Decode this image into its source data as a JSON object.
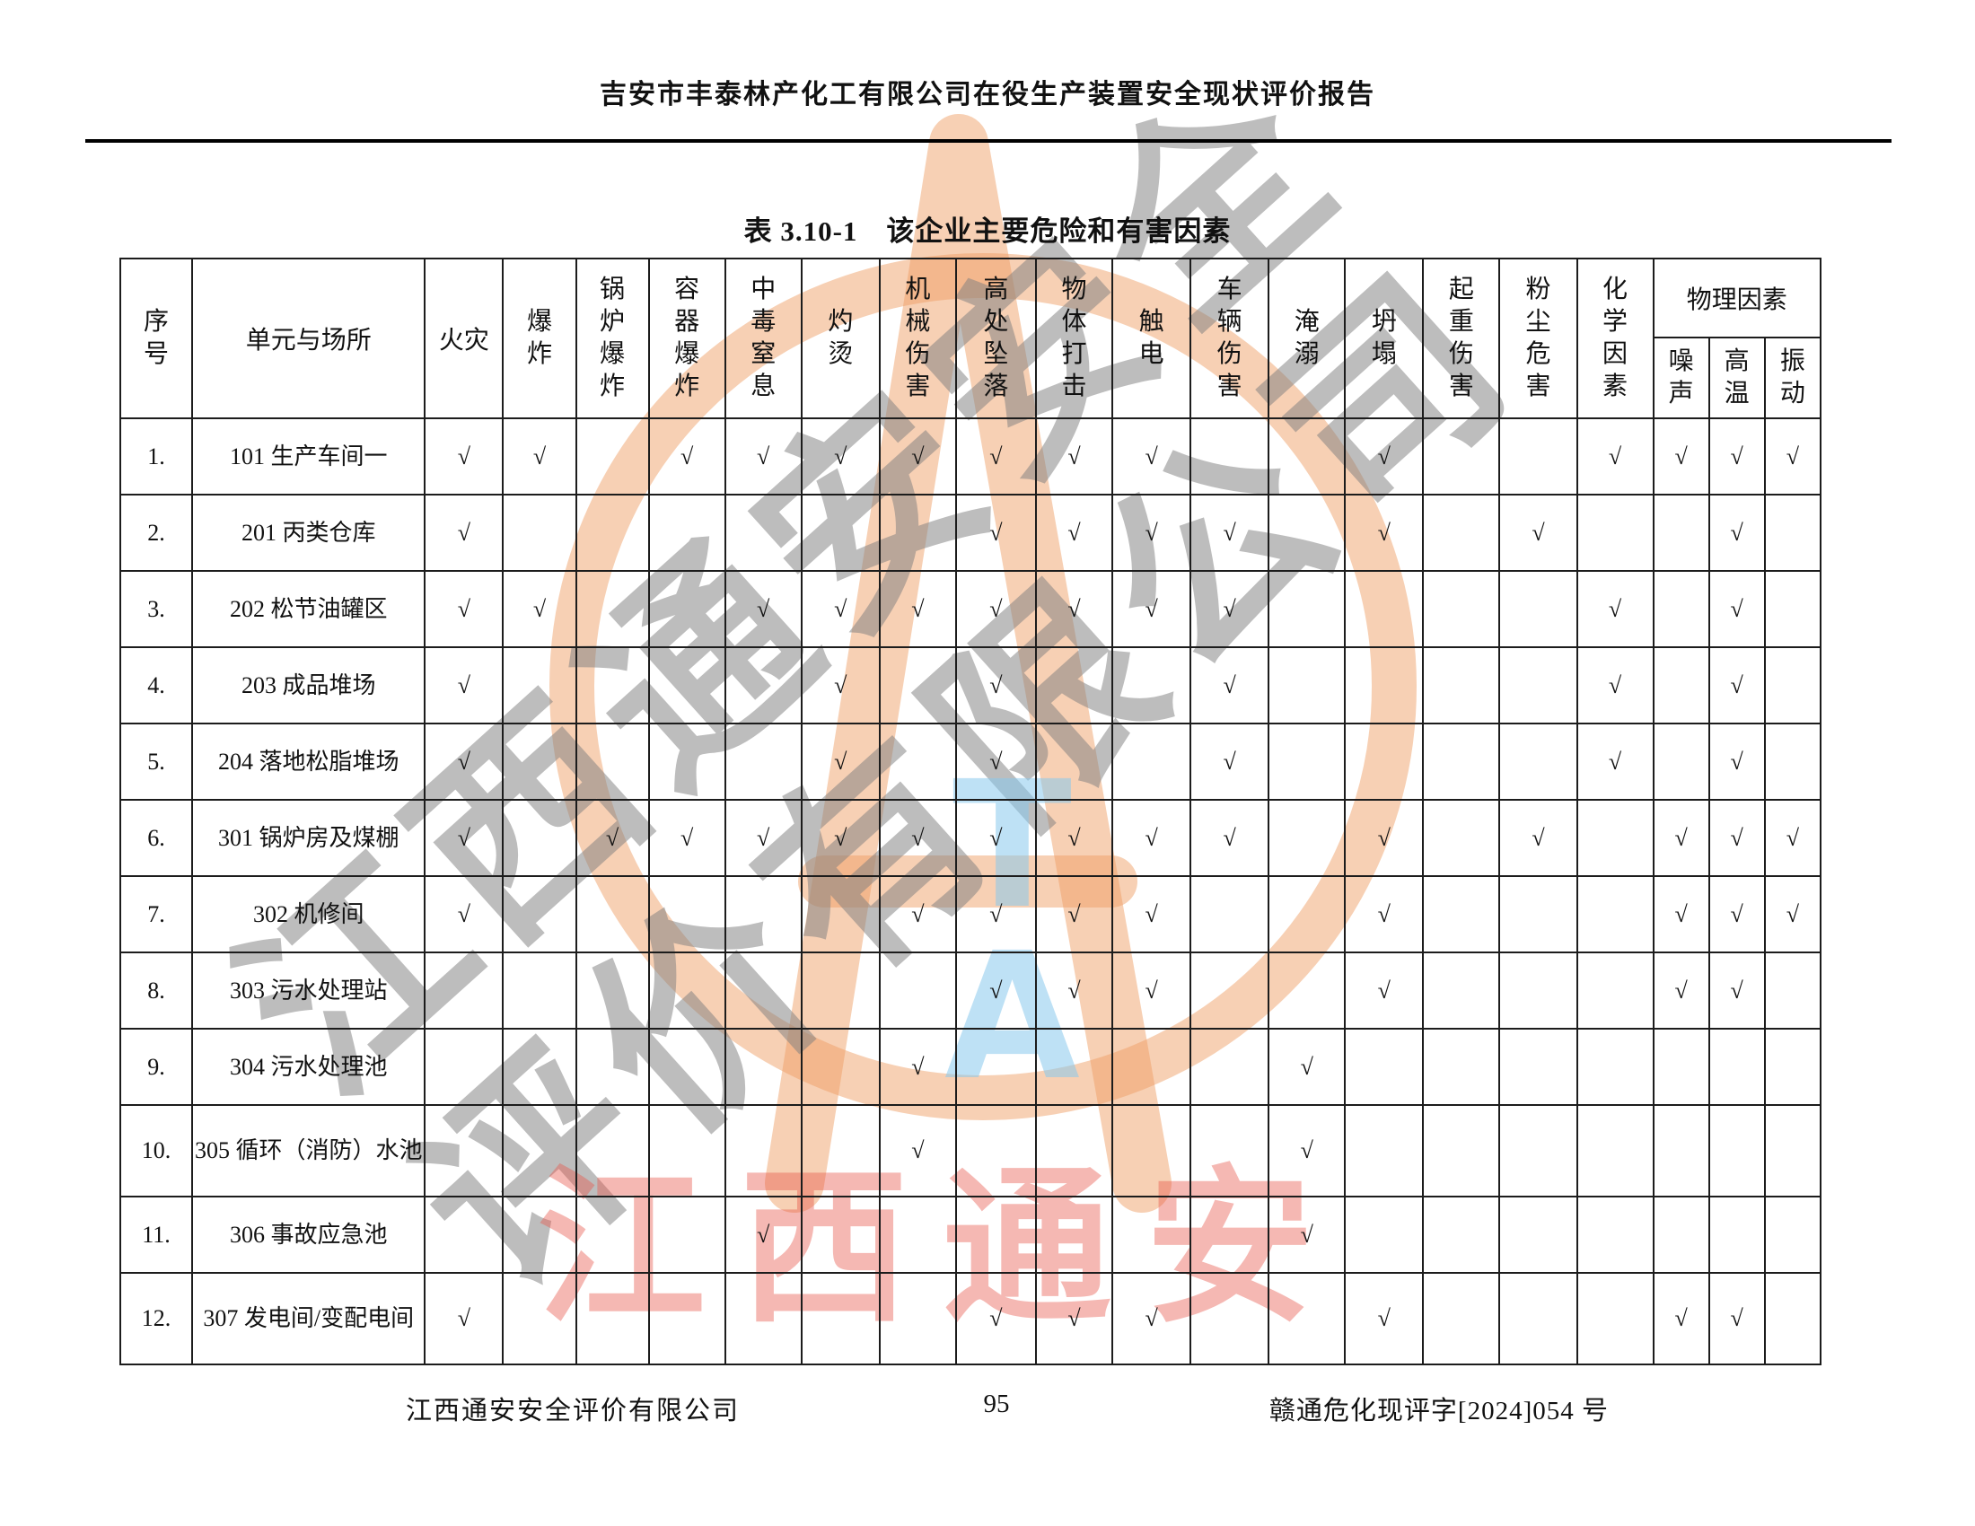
{
  "page": {
    "header_title": "吉安市丰泰林产化工有限公司在役生产装置安全现状评价报告",
    "table_title": "表 3.10-1　该企业主要危险和有害因素",
    "footer": {
      "left": "江西通安安全评价有限公司",
      "page_number": "95",
      "right": "赣通危化现评字[2024]054 号"
    }
  },
  "watermark": {
    "red_text": "江西通安",
    "gray_text_line1": "江西通安安全",
    "gray_text_line2": "评价有限公司",
    "blue_letters": "T\nA",
    "orange_color": "#EE9D62",
    "blue_color": "#88C8EC",
    "gray_color": "#808080",
    "red_color": "#E8564A"
  },
  "table": {
    "check_symbol": "√",
    "col_headers": {
      "index": "序号",
      "unit": "单元与场所",
      "hazards": [
        "火灾",
        "爆炸",
        "锅炉爆炸",
        "容器爆炸",
        "中毒窒息",
        "灼烫",
        "机械伤害",
        "高处坠落",
        "物体打击",
        "触电",
        "车辆伤害",
        "淹溺",
        "坍塌",
        "起重伤害",
        "粉尘危害",
        "化学因素"
      ],
      "physical_group": "物理因素",
      "physical_subs": [
        "噪声",
        "高温",
        "振动"
      ]
    },
    "rows": [
      {
        "no": "1.",
        "unit": "101 生产车间一",
        "marks": [
          1,
          1,
          0,
          1,
          1,
          1,
          1,
          1,
          1,
          1,
          0,
          0,
          1,
          0,
          0,
          1,
          1,
          1,
          1
        ]
      },
      {
        "no": "2.",
        "unit": "201 丙类仓库",
        "marks": [
          1,
          0,
          0,
          0,
          0,
          0,
          0,
          1,
          1,
          1,
          1,
          0,
          1,
          0,
          1,
          0,
          0,
          1,
          0
        ]
      },
      {
        "no": "3.",
        "unit": "202 松节油罐区",
        "marks": [
          1,
          1,
          0,
          0,
          1,
          1,
          1,
          1,
          1,
          1,
          1,
          0,
          0,
          0,
          0,
          1,
          0,
          1,
          0
        ]
      },
      {
        "no": "4.",
        "unit": "203 成品堆场",
        "marks": [
          1,
          0,
          0,
          0,
          0,
          1,
          0,
          1,
          0,
          0,
          1,
          0,
          0,
          0,
          0,
          1,
          0,
          1,
          0
        ]
      },
      {
        "no": "5.",
        "unit": "204 落地松脂堆场",
        "marks": [
          1,
          0,
          0,
          0,
          0,
          1,
          0,
          1,
          0,
          0,
          1,
          0,
          0,
          0,
          0,
          1,
          0,
          1,
          0
        ]
      },
      {
        "no": "6.",
        "unit": "301 锅炉房及煤棚",
        "marks": [
          1,
          0,
          1,
          1,
          1,
          1,
          1,
          1,
          1,
          1,
          1,
          0,
          1,
          0,
          1,
          0,
          1,
          1,
          1
        ]
      },
      {
        "no": "7.",
        "unit": "302 机修间",
        "marks": [
          1,
          0,
          0,
          0,
          0,
          0,
          1,
          1,
          1,
          1,
          0,
          0,
          1,
          0,
          0,
          0,
          1,
          1,
          1
        ]
      },
      {
        "no": "8.",
        "unit": "303 污水处理站",
        "marks": [
          0,
          0,
          0,
          0,
          0,
          0,
          0,
          1,
          1,
          1,
          0,
          0,
          1,
          0,
          0,
          0,
          1,
          1,
          0
        ]
      },
      {
        "no": "9.",
        "unit": "304 污水处理池",
        "marks": [
          0,
          0,
          0,
          0,
          0,
          0,
          1,
          0,
          0,
          0,
          0,
          1,
          0,
          0,
          0,
          0,
          0,
          0,
          0
        ]
      },
      {
        "no": "10.",
        "unit": "305 循环（消防）水池",
        "marks": [
          0,
          0,
          0,
          0,
          0,
          0,
          1,
          0,
          0,
          0,
          0,
          1,
          0,
          0,
          0,
          0,
          0,
          0,
          0
        ]
      },
      {
        "no": "11.",
        "unit": "306 事故应急池",
        "marks": [
          0,
          0,
          0,
          0,
          1,
          0,
          0,
          0,
          0,
          0,
          0,
          1,
          0,
          0,
          0,
          0,
          0,
          0,
          0
        ]
      },
      {
        "no": "12.",
        "unit": "307 发电间/变配电间",
        "marks": [
          1,
          0,
          0,
          0,
          0,
          0,
          0,
          1,
          1,
          1,
          0,
          0,
          1,
          0,
          0,
          0,
          1,
          1,
          0
        ]
      }
    ]
  }
}
